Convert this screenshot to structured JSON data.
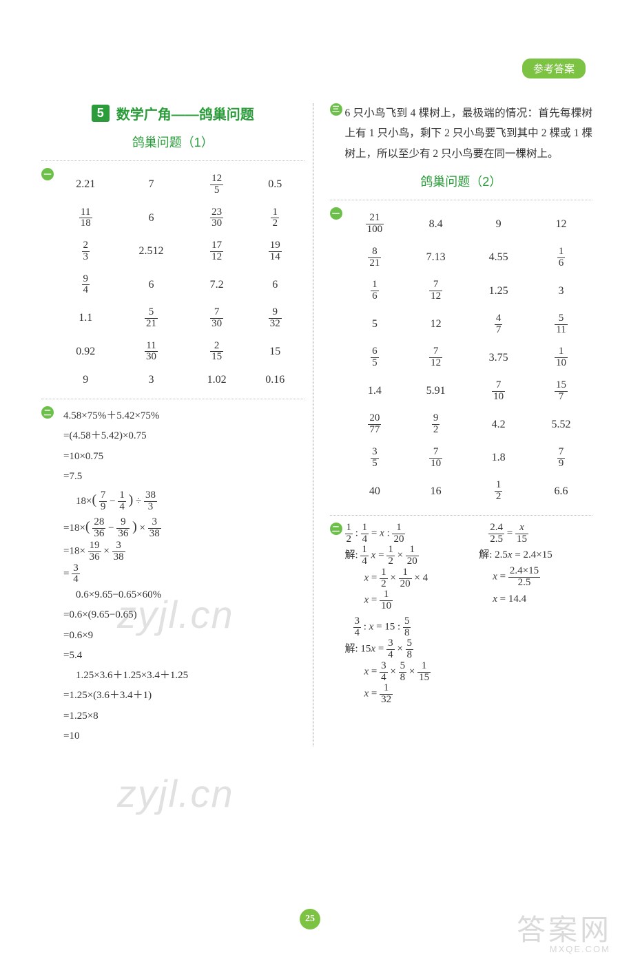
{
  "tab_label": "参考答案",
  "page_number": "25",
  "left": {
    "section_number": "5",
    "section_title": "数学广角——鸽巢问题",
    "sub_title": "鸽巢问题（1）",
    "bullets": {
      "b1": "一",
      "b2": "二"
    },
    "table1": {
      "rows": [
        [
          "2.21",
          "7",
          {
            "n": "12",
            "d": "5"
          },
          "0.5"
        ],
        [
          {
            "n": "11",
            "d": "18"
          },
          "6",
          {
            "n": "23",
            "d": "30"
          },
          {
            "n": "1",
            "d": "2"
          }
        ],
        [
          {
            "n": "2",
            "d": "3"
          },
          "2.512",
          {
            "n": "17",
            "d": "12"
          },
          {
            "n": "19",
            "d": "14"
          }
        ],
        [
          {
            "n": "9",
            "d": "4"
          },
          "6",
          "7.2",
          "6"
        ],
        [
          "1.1",
          {
            "n": "5",
            "d": "21"
          },
          {
            "n": "7",
            "d": "30"
          },
          {
            "n": "9",
            "d": "32"
          }
        ],
        [
          "0.92",
          {
            "n": "11",
            "d": "30"
          },
          {
            "n": "2",
            "d": "15"
          },
          "15"
        ],
        [
          "9",
          "3",
          "1.02",
          "0.16"
        ]
      ]
    },
    "calc": {
      "g1": [
        "4.58×75%＋5.42×75%",
        "=(4.58＋5.42)×0.75",
        "=10×0.75",
        "=7.5"
      ],
      "g2_head": "18×( 7/9 − 1/4 ) ÷ 38/3",
      "g2": [
        "=18×( 28/36 − 9/36 ) × 3/38",
        "=18× 19/36 × 3/38",
        "= 3/4"
      ],
      "g3": [
        "0.6×9.65−0.65×60%",
        "=0.6×(9.65−0.65)",
        "=0.6×9",
        "=5.4"
      ],
      "g4": [
        "1.25×3.6＋1.25×3.4＋1.25",
        "=1.25×(3.6＋3.4＋1)",
        "=1.25×8",
        "=10"
      ]
    }
  },
  "right": {
    "bullets": {
      "b3": "三",
      "b1": "一",
      "b2": "二"
    },
    "para": "6 只小鸟飞到 4 棵树上，最极端的情况：首先每棵树上有 1 只小鸟，剩下 2 只小鸟要飞到其中 2 棵或 1 棵树上，所以至少有 2 只小鸟要在同一棵树上。",
    "sub_title": "鸽巢问题（2）",
    "table2": {
      "rows": [
        [
          {
            "n": "21",
            "d": "100"
          },
          "8.4",
          "9",
          "12"
        ],
        [
          {
            "n": "8",
            "d": "21"
          },
          "7.13",
          "4.55",
          {
            "n": "1",
            "d": "6"
          }
        ],
        [
          {
            "n": "1",
            "d": "6"
          },
          {
            "n": "7",
            "d": "12"
          },
          "1.25",
          "3"
        ],
        [
          "5",
          "12",
          {
            "n": "4",
            "d": "7"
          },
          {
            "n": "5",
            "d": "11"
          }
        ],
        [
          {
            "n": "6",
            "d": "5"
          },
          {
            "n": "7",
            "d": "12"
          },
          "3.75",
          {
            "n": "1",
            "d": "10"
          }
        ],
        [
          "1.4",
          "5.91",
          {
            "n": "7",
            "d": "10"
          },
          {
            "n": "15",
            "d": "7"
          }
        ],
        [
          {
            "n": "20",
            "d": "77"
          },
          {
            "n": "9",
            "d": "2"
          },
          "4.2",
          "5.52"
        ],
        [
          {
            "n": "3",
            "d": "5"
          },
          {
            "n": "7",
            "d": "10"
          },
          "1.8",
          {
            "n": "7",
            "d": "9"
          }
        ],
        [
          "40",
          "16",
          {
            "n": "1",
            "d": "2"
          },
          "6.6"
        ]
      ]
    },
    "eqs": {
      "left1": {
        "head": "1/2 : 1/4 = x : 1/20",
        "steps": [
          "解: 1/4 x = 1/2 × 1/20",
          "x = 1/2 × 1/20 × 4",
          "x = 1/10"
        ]
      },
      "right1": {
        "head": "2.4/2.5 = x/15",
        "steps": [
          "解: 2.5x = 2.4×15",
          "x = (2.4×15)/2.5",
          "x = 14.4"
        ]
      },
      "left2": {
        "head": "3/4 : x = 15 : 5/8",
        "steps": [
          "解: 15x = 3/4 × 5/8",
          "x = 3/4 × 5/8 × 1/15",
          "x = 1/32"
        ]
      }
    }
  },
  "watermarks": {
    "wm": "zyjl.cn",
    "corner": "答案网",
    "corner_sub": "MXQE.COM"
  },
  "colors": {
    "accent": "#2a9d3a",
    "badge_bg": "#7cc243",
    "bullet_bg": "#6cc04a",
    "text": "#333333"
  }
}
